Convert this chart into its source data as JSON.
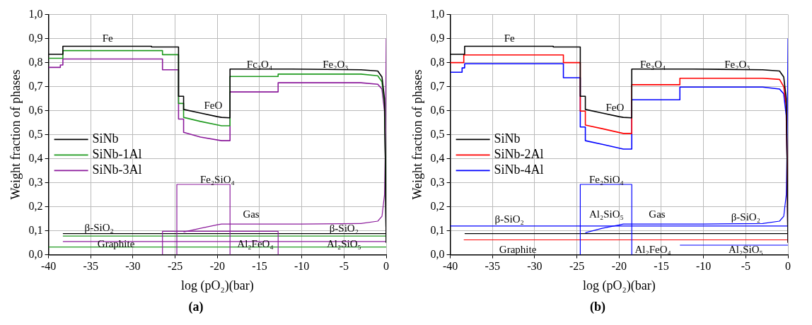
{
  "chart_data": [
    {
      "type": "line",
      "title": "(a)",
      "xlabel": "log (pO₂)(bar)",
      "ylabel": "Weight fraction of phases",
      "xlim": [
        -40,
        0
      ],
      "ylim": [
        0,
        1
      ],
      "xticks": [
        -40,
        -35,
        -30,
        -25,
        -20,
        -15,
        -10,
        -5,
        0
      ],
      "yticks": [
        {
          "value": 0,
          "label": "0,0"
        },
        {
          "value": 0.1,
          "label": "0,1"
        },
        {
          "value": 0.2,
          "label": "0,2"
        },
        {
          "value": 0.3,
          "label": "0,3"
        },
        {
          "value": 0.4,
          "label": "0,4"
        },
        {
          "value": 0.5,
          "label": "0,5"
        },
        {
          "value": 0.6,
          "label": "0,6"
        },
        {
          "value": 0.7,
          "label": "0,7"
        },
        {
          "value": 0.8,
          "label": "0,8"
        },
        {
          "value": 0.9,
          "label": "0,9"
        },
        {
          "value": 1,
          "label": "1,0"
        }
      ],
      "grid": true,
      "legend": "left",
      "line_style": "solid",
      "marker": "none",
      "series": [
        {
          "name": "SiNb",
          "color": "#000000",
          "x": [
            -40,
            -38.3,
            -38.3,
            -27.8,
            -27.8,
            -24.6,
            -24.6,
            -24,
            -24,
            -22,
            -20,
            -19.5,
            -18.5,
            -18.5,
            -11.2,
            -3,
            -1,
            -0.5,
            -0.2,
            -0.1,
            0
          ],
          "values": [
            0.835,
            0.835,
            0.868,
            0.868,
            0.865,
            0.865,
            0.66,
            0.66,
            0.605,
            0.59,
            0.575,
            0.572,
            0.57,
            0.773,
            0.773,
            0.77,
            0.765,
            0.74,
            0.65,
            0.4,
            0.05
          ]
        },
        {
          "name": "SiNb-1Al",
          "color": "#1f9a1f",
          "x": [
            -40,
            -38.3,
            -38.3,
            -26.5,
            -26.5,
            -24.6,
            -24.6,
            -24,
            -24,
            -22,
            -19.5,
            -18.5,
            -18.5,
            -12.8,
            -12.8,
            -3,
            -1,
            -0.5,
            -0.2,
            -0.1,
            0
          ],
          "values": [
            0.818,
            0.818,
            0.85,
            0.85,
            0.833,
            0.833,
            0.63,
            0.63,
            0.572,
            0.555,
            0.537,
            0.537,
            0.742,
            0.742,
            0.752,
            0.752,
            0.745,
            0.72,
            0.63,
            0.4,
            0.05
          ]
        },
        {
          "name": "SiNb-3Al",
          "color": "#8b1a9b",
          "x": [
            -40,
            -38.6,
            -38.6,
            -38.3,
            -38.3,
            -26.5,
            -26.5,
            -24.6,
            -24.6,
            -24,
            -24,
            -22,
            -19.5,
            -18.5,
            -18.5,
            -12.8,
            -12.8,
            -3,
            -1,
            -0.5,
            -0.2,
            -0.1,
            0
          ],
          "values": [
            0.78,
            0.78,
            0.79,
            0.79,
            0.815,
            0.815,
            0.77,
            0.77,
            0.565,
            0.565,
            0.51,
            0.49,
            0.475,
            0.475,
            0.678,
            0.678,
            0.716,
            0.716,
            0.71,
            0.69,
            0.6,
            0.4,
            0.05
          ]
        },
        {
          "color": "#8b1a9b",
          "x": [
            -24.8,
            -24.8,
            -18.5,
            -18.5
          ],
          "values": [
            0,
            0.293,
            0.293,
            0
          ]
        },
        {
          "color": "#8b1a9b",
          "x": [
            -24,
            -22,
            -20,
            -19.5,
            -10,
            -3,
            -1,
            -0.5,
            -0.2,
            -0.1,
            0
          ],
          "values": [
            0.095,
            0.11,
            0.125,
            0.128,
            0.128,
            0.13,
            0.14,
            0.16,
            0.25,
            0.45,
            0.9
          ]
        },
        {
          "color": "#8b1a9b",
          "x": [
            -26.5,
            -26.5,
            -12.8,
            -12.8
          ],
          "values": [
            0,
            0.098,
            0.098,
            0
          ]
        },
        {
          "color": "#000000",
          "x": [
            -38.3,
            0
          ],
          "values": [
            0.088,
            0.088
          ]
        },
        {
          "color": "#1f9a1f",
          "x": [
            -38.3,
            0
          ],
          "values": [
            0.078,
            0.078
          ]
        },
        {
          "color": "#8b1a9b",
          "x": [
            -38.3,
            0
          ],
          "values": [
            0.055,
            0.055
          ]
        },
        {
          "color": "#1f9a1f",
          "x": [
            -40,
            0
          ],
          "values": [
            0.032,
            0.032
          ]
        }
      ],
      "annotations": [
        "Fe",
        "FeO",
        "Fc₃O₄",
        "Fe₂O₃",
        "Fe₂SiO₄",
        "Gas",
        "β-SiO₂",
        "Graphite",
        "Al₂FeO₄",
        "β-SiO₂",
        "Al₂SiO₅"
      ]
    },
    {
      "type": "line",
      "title": "(b)",
      "xlabel": "log (pO₂)(bar)",
      "ylabel": "Weight fraction of phases",
      "xlim": [
        -40,
        0
      ],
      "ylim": [
        0,
        1
      ],
      "xticks": [
        -40,
        -35,
        -30,
        -25,
        -20,
        -15,
        -10,
        -5,
        0
      ],
      "yticks": [
        {
          "value": 0,
          "label": "0,0"
        },
        {
          "value": 0.1,
          "label": "0,1"
        },
        {
          "value": 0.2,
          "label": "0,2"
        },
        {
          "value": 0.3,
          "label": "0,3"
        },
        {
          "value": 0.4,
          "label": "0,4"
        },
        {
          "value": 0.5,
          "label": "0,5"
        },
        {
          "value": 0.6,
          "label": "0,6"
        },
        {
          "value": 0.7,
          "label": "0,7"
        },
        {
          "value": 0.8,
          "label": "0,8"
        },
        {
          "value": 0.9,
          "label": "0,9"
        },
        {
          "value": 1,
          "label": "1,0"
        }
      ],
      "grid": true,
      "legend": "left",
      "line_style": "solid",
      "marker": "none",
      "series": [
        {
          "name": "SiNb",
          "color": "#000000",
          "x": [
            -40,
            -38.3,
            -38.3,
            -27.8,
            -27.8,
            -24.6,
            -24.6,
            -24,
            -24,
            -22,
            -20,
            -19.5,
            -18.5,
            -18.5,
            -11.2,
            -3,
            -1,
            -0.5,
            -0.2,
            -0.1,
            0
          ],
          "values": [
            0.835,
            0.835,
            0.868,
            0.868,
            0.865,
            0.865,
            0.66,
            0.66,
            0.605,
            0.59,
            0.575,
            0.572,
            0.57,
            0.773,
            0.773,
            0.77,
            0.765,
            0.74,
            0.65,
            0.4,
            0.05
          ]
        },
        {
          "name": "SiNb-2Al",
          "color": "#ff0000",
          "x": [
            -40,
            -38.4,
            -38.4,
            -26.6,
            -26.6,
            -24.6,
            -24.6,
            -24,
            -24,
            -22,
            -19.5,
            -18.5,
            -18.5,
            -12.8,
            -12.8,
            -3,
            -1,
            -0.5,
            -0.2,
            -0.1,
            0
          ],
          "values": [
            0.8,
            0.8,
            0.832,
            0.832,
            0.8,
            0.8,
            0.598,
            0.598,
            0.54,
            0.525,
            0.505,
            0.505,
            0.708,
            0.708,
            0.735,
            0.735,
            0.73,
            0.7,
            0.62,
            0.4,
            0.05
          ]
        },
        {
          "name": "SiNb-4Al",
          "color": "#0000ff",
          "x": [
            -40,
            -38.6,
            -38.6,
            -38.3,
            -38.3,
            -26.6,
            -26.6,
            -24.6,
            -24.6,
            -24,
            -24,
            -22,
            -19.5,
            -18.5,
            -18.5,
            -12.8,
            -12.8,
            -3,
            -1,
            -0.5,
            -0.2,
            -0.1,
            0
          ],
          "values": [
            0.76,
            0.76,
            0.778,
            0.778,
            0.795,
            0.795,
            0.737,
            0.737,
            0.532,
            0.532,
            0.475,
            0.46,
            0.44,
            0.44,
            0.645,
            0.645,
            0.698,
            0.698,
            0.69,
            0.67,
            0.58,
            0.4,
            0.05
          ]
        },
        {
          "color": "#0000ff",
          "x": [
            -24.6,
            -24.6,
            -18.5,
            -18.5
          ],
          "values": [
            0,
            0.293,
            0.293,
            0
          ]
        },
        {
          "color": "#0000ff",
          "x": [
            -24,
            -22,
            -20,
            -19.5,
            -10,
            -3,
            -1,
            -0.5,
            -0.2,
            -0.1,
            0
          ],
          "values": [
            0.092,
            0.11,
            0.124,
            0.128,
            0.128,
            0.13,
            0.14,
            0.16,
            0.25,
            0.45,
            0.9
          ]
        },
        {
          "color": "#0000ff",
          "x": [
            -40,
            0
          ],
          "values": [
            0.12,
            0.12
          ]
        },
        {
          "color": "#000000",
          "x": [
            -38.3,
            0
          ],
          "values": [
            0.088,
            0.088
          ]
        },
        {
          "color": "#ff0000",
          "x": [
            -38.4,
            0
          ],
          "values": [
            0.062,
            0.062
          ]
        },
        {
          "color": "#0000ff",
          "x": [
            -12.8,
            0
          ],
          "values": [
            0.04,
            0.04
          ]
        }
      ],
      "annotations": [
        "Fe",
        "FeO",
        "Fe₃O₄",
        "Fe₂O₃",
        "Fe₂SiO₄",
        "Al₂SiO₅",
        "Gas",
        "β-SiO₂",
        "Graphite",
        "Al₂FeO₄",
        "β-SiO₂",
        "Al₂SiO₅"
      ]
    }
  ]
}
